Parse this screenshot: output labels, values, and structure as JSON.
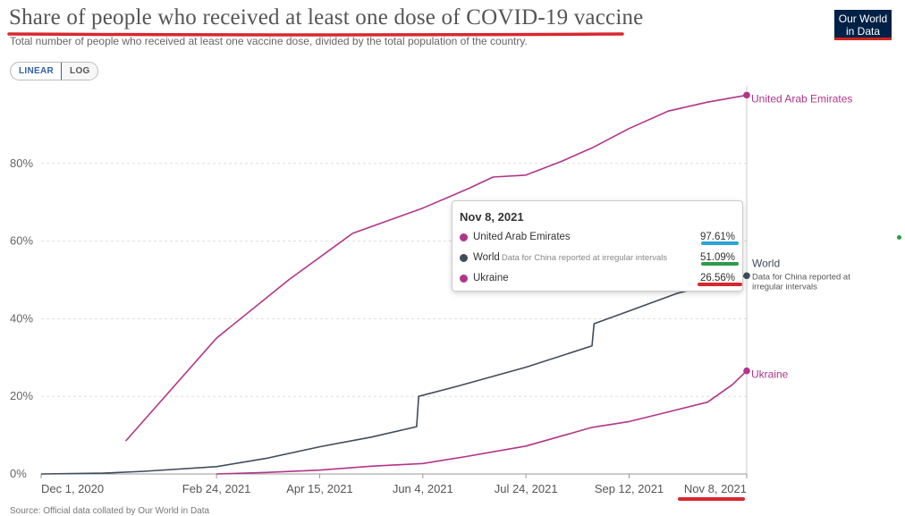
{
  "title": "Share of people who received at least one dose of COVID-19 vaccine",
  "subtitle": "Total number of people who received at least one vaccine dose, divided by the total population of the country.",
  "logo": {
    "line1": "Our World",
    "line2": "in Data",
    "bg": "#002147",
    "accent": "#ce261e"
  },
  "scale_toggle": {
    "linear_label": "LINEAR",
    "log_label": "LOG",
    "selected": "LINEAR"
  },
  "tooltip": {
    "date": "Nov 8, 2021",
    "rows": [
      {
        "name": "United Arab Emirates",
        "note": "",
        "value": "97.61%",
        "color": "#b13588",
        "underline": "#2aa5d6"
      },
      {
        "name": "World",
        "note": "Data for China reported at irregular intervals",
        "value": "51.09%",
        "color": "#3f4c5c",
        "underline": "#2f9a48"
      },
      {
        "name": "Ukraine",
        "note": "",
        "value": "26.56%",
        "color": "#b13588",
        "underline": "#d7282f"
      }
    ]
  },
  "source": "Source: Official data collated by Our World in Data",
  "annotations": {
    "highlight_color": "#d7282f"
  },
  "chart_data": {
    "type": "line",
    "x_unit": "date",
    "y_unit": "%",
    "ylim": [
      0,
      100
    ],
    "y_ticks": [
      0,
      20,
      40,
      60,
      80
    ],
    "y_tick_labels": [
      "0%",
      "20%",
      "40%",
      "60%",
      "80%"
    ],
    "x_range": [
      "2020-12-01",
      "2021-11-08"
    ],
    "x_ticks": [
      {
        "date": "2020-12-01",
        "label": "Dec 1, 2020"
      },
      {
        "date": "2021-02-24",
        "label": "Feb 24, 2021"
      },
      {
        "date": "2021-04-15",
        "label": "Apr 15, 2021"
      },
      {
        "date": "2021-06-04",
        "label": "Jun 4, 2021"
      },
      {
        "date": "2021-07-24",
        "label": "Jul 24, 2021"
      },
      {
        "date": "2021-09-12",
        "label": "Sep 12, 2021"
      },
      {
        "date": "2021-11-08",
        "label": "Nov 8, 2021"
      }
    ],
    "grid": true,
    "series": [
      {
        "name": "United Arab Emirates",
        "label_note": "",
        "color": "#b13588",
        "points": [
          [
            "2021-01-11",
            8.5
          ],
          [
            "2021-02-24",
            35.0
          ],
          [
            "2021-03-31",
            50
          ],
          [
            "2021-05-01",
            62
          ],
          [
            "2021-06-04",
            68.5
          ],
          [
            "2021-06-26",
            73.5
          ],
          [
            "2021-07-08",
            76.5
          ],
          [
            "2021-07-24",
            77.0
          ],
          [
            "2021-08-10",
            80.5
          ],
          [
            "2021-08-25",
            84.0
          ],
          [
            "2021-09-12",
            89.0
          ],
          [
            "2021-10-01",
            93.5
          ],
          [
            "2021-10-20",
            95.8
          ],
          [
            "2021-11-08",
            97.61
          ]
        ]
      },
      {
        "name": "World",
        "label_note": "Data for China reported at irregular intervals",
        "color": "#3f4c5c",
        "points": [
          [
            "2020-12-01",
            0
          ],
          [
            "2020-12-31",
            0.2
          ],
          [
            "2021-01-20",
            0.7
          ],
          [
            "2021-02-24",
            1.9
          ],
          [
            "2021-03-20",
            4.0
          ],
          [
            "2021-04-15",
            7.0
          ],
          [
            "2021-05-10",
            9.5
          ],
          [
            "2021-06-01",
            12.2
          ],
          [
            "2021-06-02",
            20.0
          ],
          [
            "2021-06-20",
            22.5
          ],
          [
            "2021-07-24",
            27.5
          ],
          [
            "2021-08-25",
            33.0
          ],
          [
            "2021-08-26",
            38.7
          ],
          [
            "2021-09-12",
            42.0
          ],
          [
            "2021-10-05",
            46.5
          ],
          [
            "2021-11-08",
            51.09
          ]
        ]
      },
      {
        "name": "Ukraine",
        "label_note": "",
        "color": "#b13588",
        "points": [
          [
            "2021-02-24",
            0
          ],
          [
            "2021-03-20",
            0.4
          ],
          [
            "2021-04-15",
            1.0
          ],
          [
            "2021-05-10",
            2.0
          ],
          [
            "2021-06-04",
            2.7
          ],
          [
            "2021-06-25",
            4.5
          ],
          [
            "2021-07-24",
            7.2
          ],
          [
            "2021-08-25",
            12.0
          ],
          [
            "2021-09-12",
            13.5
          ],
          [
            "2021-10-01",
            16.0
          ],
          [
            "2021-10-20",
            18.5
          ],
          [
            "2021-11-01",
            23.0
          ],
          [
            "2021-11-08",
            26.56
          ]
        ]
      }
    ]
  }
}
